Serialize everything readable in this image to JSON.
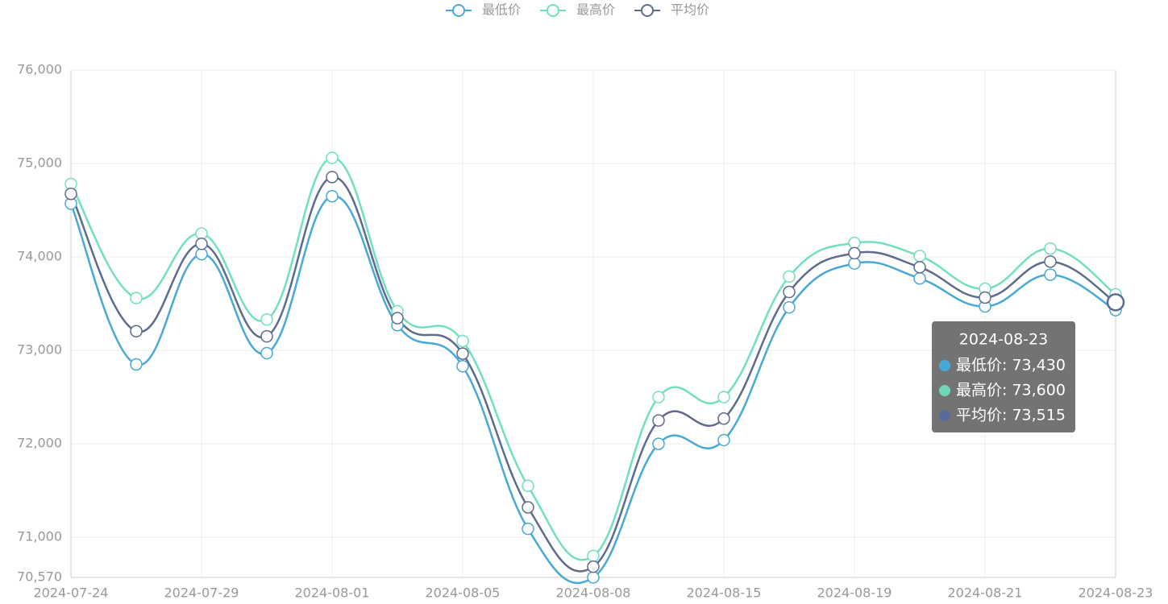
{
  "chart_data": {
    "type": "line",
    "categories": [
      "2024-07-24",
      null,
      "2024-07-29",
      null,
      "2024-08-01",
      null,
      "2024-08-05",
      null,
      "2024-08-08",
      null,
      "2024-08-15",
      null,
      "2024-08-19",
      null,
      "2024-08-21",
      null,
      "2024-08-23"
    ],
    "series": [
      {
        "name": "最低价",
        "color": "#48a9d6",
        "values": [
          74570,
          72850,
          74030,
          72970,
          74650,
          73270,
          72830,
          71090,
          70570,
          72000,
          72040,
          73460,
          73930,
          73770,
          73470,
          73810,
          73430
        ]
      },
      {
        "name": "最高价",
        "color": "#72dfc0",
        "values": [
          74780,
          73560,
          74250,
          73330,
          75060,
          73420,
          73100,
          71550,
          70800,
          72500,
          72500,
          73790,
          74150,
          74010,
          73660,
          74090,
          73600
        ]
      },
      {
        "name": "平均价",
        "color": "#5f6b8c",
        "values": [
          74675,
          73205,
          74140,
          73150,
          74855,
          73345,
          72965,
          71320,
          70685,
          72250,
          72270,
          73625,
          74040,
          73890,
          73565,
          73950,
          73515
        ]
      }
    ],
    "ylim": [
      70570,
      76000
    ],
    "yticks": [
      {
        "value": 70570,
        "label": "70,570"
      },
      {
        "value": 71000,
        "label": "71,000"
      },
      {
        "value": 72000,
        "label": "72,000"
      },
      {
        "value": 73000,
        "label": "73,000"
      },
      {
        "value": 74000,
        "label": "74,000"
      },
      {
        "value": 75000,
        "label": "75,000"
      },
      {
        "value": 76000,
        "label": "76,000"
      }
    ],
    "grid": true,
    "legend": "top",
    "tooltip": {
      "title": "2024-08-23",
      "rows": [
        {
          "text": "最低价: 73,430",
          "color": "#45a8d8"
        },
        {
          "text": "最高价: 73,600",
          "color": "#6ed6b8"
        },
        {
          "text": "平均价: 73,515",
          "color": "#5b6a9a"
        }
      ]
    }
  }
}
